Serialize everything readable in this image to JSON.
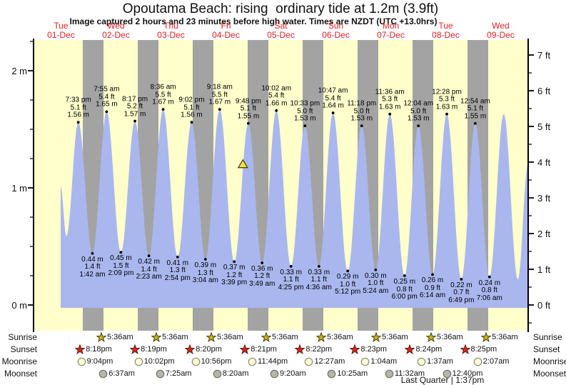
{
  "title": "Opoutama Beach: rising  ordinary tide at 1.2m (3.9ft)",
  "subtitle": "Image captured 2 hours and 23 minutes before high water. Times are NZDT (UTC +13.0hrs)",
  "colors": {
    "day_bg": "#ffffcc",
    "night_band": "#a3a3a3",
    "tide_fill": "#a9b7ee",
    "day_label_red": "#dd2222",
    "axis": "#000000",
    "sunrise_star": "#c6ad29",
    "sunset_star": "#da251d",
    "moonrise_circle": "#ffffd4",
    "moonset_circle": "#b5b5aa",
    "capture_triangle": "#f2e340"
  },
  "chart_data": {
    "type": "area",
    "title": "Opoutama Beach: rising  ordinary tide at 1.2m (3.9ft)",
    "x_axis_days": [
      {
        "name": "Tue",
        "date": "01-Dec"
      },
      {
        "name": "Wed",
        "date": "02-Dec"
      },
      {
        "name": "Thu",
        "date": "03-Dec"
      },
      {
        "name": "Fri",
        "date": "04-Dec"
      },
      {
        "name": "Sat",
        "date": "05-Dec"
      },
      {
        "name": "Sun",
        "date": "06-Dec"
      },
      {
        "name": "Mon",
        "date": "07-Dec"
      },
      {
        "name": "Tue",
        "date": "08-Dec"
      },
      {
        "name": "Wed",
        "date": "09-Dec"
      }
    ],
    "y_left_ticks": [
      {
        "label": "2 m",
        "value": 2
      },
      {
        "label": "1 m",
        "value": 1
      },
      {
        "label": "0 m",
        "value": 0
      }
    ],
    "y_right_ticks": [
      {
        "label": "7 ft",
        "value": 7
      },
      {
        "label": "6 ft",
        "value": 6
      },
      {
        "label": "5 ft",
        "value": 5
      },
      {
        "label": "4 ft",
        "value": 4
      },
      {
        "label": "3 ft",
        "value": 3
      },
      {
        "label": "2 ft",
        "value": 2
      },
      {
        "label": "1 ft",
        "value": 1
      },
      {
        "label": "0 ft",
        "value": 0
      }
    ],
    "y_left_range_m": [
      -0.22,
      2.27
    ],
    "grid": "off",
    "high_tides": [
      {
        "day": 0,
        "time": "7:33 pm",
        "ft": "5.1 ft",
        "m": "1.56 m",
        "height_m": 1.56
      },
      {
        "day": 1,
        "time": "7:55 am",
        "ft": "5.4 ft",
        "m": "1.65 m",
        "height_m": 1.65
      },
      {
        "day": 1,
        "time": "8:17 pm",
        "ft": "5.2 ft",
        "m": "1.57 m",
        "height_m": 1.57
      },
      {
        "day": 2,
        "time": "8:36 am",
        "ft": "5.5 ft",
        "m": "1.67 m",
        "height_m": 1.67
      },
      {
        "day": 2,
        "time": "9:02 pm",
        "ft": "5.1 ft",
        "m": "1.56 m",
        "height_m": 1.56
      },
      {
        "day": 3,
        "time": "9:18 am",
        "ft": "5.5 ft",
        "m": "1.67 m",
        "height_m": 1.67
      },
      {
        "day": 3,
        "time": "9:48 pm",
        "ft": "5.1 ft",
        "m": "1.55 m",
        "height_m": 1.55
      },
      {
        "day": 4,
        "time": "10:02 am",
        "ft": "5.4 ft",
        "m": "1.66 m",
        "height_m": 1.66
      },
      {
        "day": 4,
        "time": "10:33 pm",
        "ft": "5.0 ft",
        "m": "1.53 m",
        "height_m": 1.53
      },
      {
        "day": 5,
        "time": "10:47 am",
        "ft": "5.4 ft",
        "m": "1.64 m",
        "height_m": 1.64
      },
      {
        "day": 5,
        "time": "11:18 pm",
        "ft": "5.0 ft",
        "m": "1.53 m",
        "height_m": 1.53
      },
      {
        "day": 6,
        "time": "11:36 am",
        "ft": "5.3 ft",
        "m": "1.63 m",
        "height_m": 1.63
      },
      {
        "day": 7,
        "time": "12:04 am",
        "ft": "5.0 ft",
        "m": "1.53 m",
        "height_m": 1.53
      },
      {
        "day": 7,
        "time": "12:28 pm",
        "ft": "5.3 ft",
        "m": "1.63 m",
        "height_m": 1.63
      },
      {
        "day": 8,
        "time": "12:54 am",
        "ft": "5.1 ft",
        "m": "1.55 m",
        "height_m": 1.55
      }
    ],
    "low_tides": [
      {
        "day": 1,
        "time": "1:42 am",
        "ft": "1.4 ft",
        "m": "0.44 m",
        "height_m": 0.44
      },
      {
        "day": 1,
        "time": "2:09 pm",
        "ft": "1.5 ft",
        "m": "0.45 m",
        "height_m": 0.45
      },
      {
        "day": 2,
        "time": "2:23 am",
        "ft": "1.4 ft",
        "m": "0.42 m",
        "height_m": 0.42
      },
      {
        "day": 2,
        "time": "2:54 pm",
        "ft": "1.3 ft",
        "m": "0.41 m",
        "height_m": 0.41
      },
      {
        "day": 3,
        "time": "3:04 am",
        "ft": "1.3 ft",
        "m": "0.39 m",
        "height_m": 0.39
      },
      {
        "day": 3,
        "time": "3:39 pm",
        "ft": "1.2 ft",
        "m": "0.37 m",
        "height_m": 0.37
      },
      {
        "day": 4,
        "time": "3:49 am",
        "ft": "1.2 ft",
        "m": "0.36 m",
        "height_m": 0.36
      },
      {
        "day": 4,
        "time": "4:25 pm",
        "ft": "1.1 ft",
        "m": "0.33 m",
        "height_m": 0.33
      },
      {
        "day": 5,
        "time": "4:36 am",
        "ft": "1.1 ft",
        "m": "0.33 m",
        "height_m": 0.33
      },
      {
        "day": 5,
        "time": "5:12 pm",
        "ft": "1.0 ft",
        "m": "0.29 m",
        "height_m": 0.29
      },
      {
        "day": 6,
        "time": "5:24 am",
        "ft": "1.0 ft",
        "m": "0.30 m",
        "height_m": 0.3
      },
      {
        "day": 6,
        "time": "6:00 pm",
        "ft": "0.8 ft",
        "m": "0.25 m",
        "height_m": 0.25
      },
      {
        "day": 7,
        "time": "6:14 am",
        "ft": "0.9 ft",
        "m": "0.26 m",
        "height_m": 0.26
      },
      {
        "day": 7,
        "time": "6:49 pm",
        "ft": "0.7 ft",
        "m": "0.22 m",
        "height_m": 0.22
      },
      {
        "day": 8,
        "time": "7:06 am",
        "ft": "0.8 ft",
        "m": "0.24 m",
        "height_m": 0.24
      }
    ],
    "curve_lead": [
      {
        "day": 0,
        "time": "11:50 am",
        "height_m": 1.01
      },
      {
        "day": 0,
        "time": "2:20 pm",
        "height_m": 0.59
      }
    ],
    "curve_tail": [
      {
        "day": 8,
        "time": "1:20 pm",
        "height_m": 1.63
      },
      {
        "day": 8,
        "time": "7:30 pm",
        "height_m": 0.22
      },
      {
        "day": 8,
        "time": "11:55 pm",
        "height_m": 1.2
      }
    ],
    "capture_marker": {
      "symbol": "triangle",
      "day": 3,
      "time": "7:25 pm",
      "height_m": 1.2
    }
  },
  "astro": {
    "rows": [
      {
        "label": "Sunrise",
        "icon": "sunrise-star",
        "events": [
          {
            "day": 1,
            "time": "5:36am"
          },
          {
            "day": 2,
            "time": "5:36am"
          },
          {
            "day": 3,
            "time": "5:36am"
          },
          {
            "day": 4,
            "time": "5:36am"
          },
          {
            "day": 5,
            "time": "5:36am"
          },
          {
            "day": 6,
            "time": "5:36am"
          },
          {
            "day": 7,
            "time": "5:36am"
          },
          {
            "day": 8,
            "time": "5:36am"
          }
        ]
      },
      {
        "label": "Sunset",
        "icon": "sunset-star",
        "events": [
          {
            "day": 0,
            "time": "8:18pm"
          },
          {
            "day": 1,
            "time": "8:19pm"
          },
          {
            "day": 2,
            "time": "8:20pm"
          },
          {
            "day": 3,
            "time": "8:21pm"
          },
          {
            "day": 4,
            "time": "8:22pm"
          },
          {
            "day": 5,
            "time": "8:23pm"
          },
          {
            "day": 6,
            "time": "8:24pm"
          },
          {
            "day": 7,
            "time": "8:25pm"
          }
        ]
      },
      {
        "label": "Moonrise",
        "icon": "moonrise-circle",
        "events": [
          {
            "day": 0,
            "time": "9:04pm"
          },
          {
            "day": 1,
            "time": "10:02pm"
          },
          {
            "day": 2,
            "time": "10:56pm"
          },
          {
            "day": 3,
            "time": "11:44pm"
          },
          {
            "day": 5,
            "time": "12:27am"
          },
          {
            "day": 6,
            "time": "1:04am"
          },
          {
            "day": 7,
            "time": "1:37am"
          },
          {
            "day": 8,
            "time": "2:07am"
          }
        ]
      },
      {
        "label": "Moonset",
        "icon": "moonset-circle",
        "events": [
          {
            "day": 1,
            "time": "6:37am"
          },
          {
            "day": 2,
            "time": "7:25am"
          },
          {
            "day": 3,
            "time": "8:20am"
          },
          {
            "day": 4,
            "time": "9:20am"
          },
          {
            "day": 5,
            "time": "10:25am"
          },
          {
            "day": 6,
            "time": "11:32am"
          },
          {
            "day": 7,
            "time": "12:40pm"
          }
        ]
      }
    ],
    "moon_phase": "Last Quarter | 1:37pm"
  }
}
